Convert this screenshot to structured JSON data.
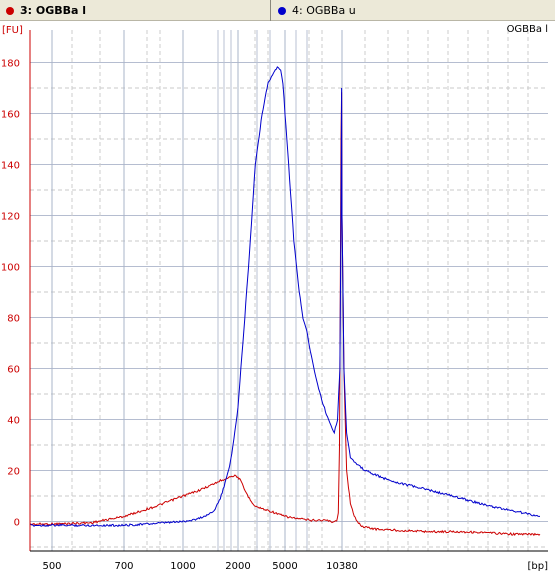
{
  "tabs": [
    {
      "label": "3: OGBBa l",
      "color": "#cc0000",
      "active": true
    },
    {
      "label": "4: OGBBa u",
      "color": "#0000cc",
      "active": false
    }
  ],
  "chart_data": {
    "type": "line",
    "title": "OGBBa l",
    "ylabel": "[FU]",
    "xlabel": "[bp]",
    "ylim": [
      -12,
      185
    ],
    "yticks": [
      0,
      20,
      40,
      60,
      80,
      100,
      120,
      140,
      160,
      180
    ],
    "xticks": [
      "500",
      "700",
      "1000",
      "2000",
      "5000",
      "10380"
    ],
    "grid": true,
    "x_unit": "bp (marker-aligned, non-linear scale)",
    "series": [
      {
        "name": "3: OGBBa l",
        "color": "#cc0000",
        "x": [
          400,
          500,
          600,
          700,
          850,
          1000,
          1200,
          1400,
          1600,
          1800,
          1900,
          2000,
          2100,
          2300,
          2500,
          2800,
          3200,
          3800,
          4300,
          5000,
          6000,
          7000,
          8000,
          8500,
          9000,
          9400,
          9700,
          9900,
          10050,
          10150,
          10250,
          10330,
          10380,
          10430,
          10500,
          10600,
          10700,
          10900,
          11300,
          12000,
          13000,
          14000,
          15000,
          16000,
          17000
        ],
        "y": [
          -1,
          -1,
          -0.5,
          2,
          6,
          10,
          12,
          14,
          16,
          17.5,
          18,
          17.5,
          16,
          12,
          9,
          6,
          5,
          4,
          3,
          2,
          1,
          0.5,
          0.5,
          0.5,
          0,
          0,
          0.5,
          3,
          30,
          90,
          150,
          168,
          120,
          60,
          20,
          7,
          2,
          -2,
          -3,
          -3.5,
          -4,
          -4,
          -4.5,
          -5,
          -5
        ]
      },
      {
        "name": "4: OGBBa u",
        "color": "#0000cc",
        "x": [
          400,
          500,
          600,
          700,
          800,
          900,
          1000,
          1100,
          1200,
          1300,
          1400,
          1500,
          1600,
          1700,
          1800,
          1900,
          2000,
          2200,
          2500,
          2800,
          3200,
          3600,
          4000,
          4300,
          4600,
          4800,
          5000,
          5300,
          5600,
          6000,
          6300,
          6600,
          7000,
          7500,
          8000,
          8500,
          9000,
          9400,
          9800,
          10100,
          10250,
          10330,
          10380,
          10430,
          10500,
          10600,
          10800,
          11000,
          11500,
          12000,
          13000,
          14000,
          15000,
          16000,
          17000
        ],
        "y": [
          -1.5,
          -1.5,
          -1.5,
          -1.5,
          -1,
          -0.5,
          0,
          0.5,
          1,
          2,
          3,
          5,
          9,
          15,
          22,
          32,
          45,
          70,
          105,
          140,
          160,
          172,
          176,
          178,
          177,
          172,
          160,
          135,
          110,
          90,
          80,
          75,
          65,
          55,
          48,
          42,
          38,
          35,
          40,
          60,
          120,
          170,
          120,
          60,
          35,
          25,
          22,
          20,
          17,
          15,
          12,
          9,
          6,
          4,
          2
        ]
      }
    ]
  }
}
